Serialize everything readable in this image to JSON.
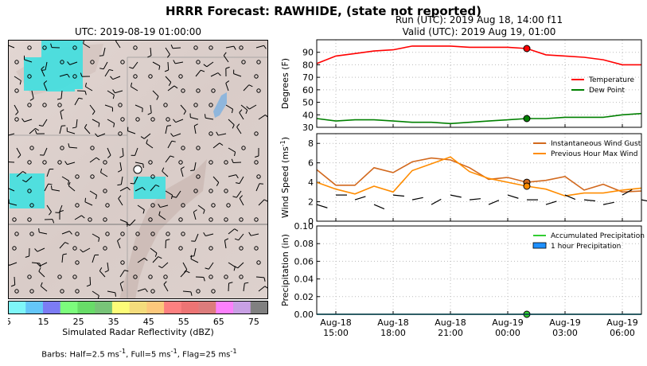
{
  "title": "HRRR Forecast: RAWHIDE, (state not reported)",
  "map": {
    "title": "UTC: 2019-08-19 01:00:00"
  },
  "run": {
    "line1": "Run (UTC): 2019 Aug 18, 14:00 f11",
    "line2": "Valid (UTC): 2019 Aug 19, 01:00"
  },
  "colorbar": {
    "label": "Simulated Radar Reflectivity (dBZ)",
    "ticks": [
      "5",
      "15",
      "25",
      "35",
      "45",
      "55",
      "65",
      "75"
    ],
    "colors": [
      "#7ef6f8",
      "#64c6f8",
      "#7c7cf4",
      "#7cfc7c",
      "#68dc68",
      "#78c478",
      "#fcfc78",
      "#f4dc7c",
      "#fcc87c",
      "#fc8080",
      "#ec7474",
      "#dc7c7c",
      "#fc80fc",
      "#c8a0e4",
      "#808080"
    ]
  },
  "barb_note": {
    "prefix": "Barbs: Half=2.5 ms",
    "mid1": ", Full=5 ms",
    "mid2": ", Flag=25 ms",
    "sup": "-1"
  },
  "colors": {
    "temperature": "#ff0000",
    "dewpoint": "#008000",
    "gust": "#d2691e",
    "maxwind": "#ff8c00",
    "accum": "#32cd32",
    "hourly": "#1e90ff",
    "now_marker_gust": "#d2691e"
  },
  "chart_data": [
    {
      "type": "line",
      "ylabel": "Degrees (F)",
      "ylim": [
        30,
        100
      ],
      "yticks": [
        30,
        40,
        50,
        60,
        70,
        80,
        90
      ],
      "grid": true,
      "legend": "right",
      "series": [
        {
          "name": "Temperature",
          "x": [
            14,
            15,
            16,
            17,
            18,
            19,
            20,
            21,
            22,
            23,
            24,
            25,
            26,
            27,
            28,
            29,
            30,
            31
          ],
          "values": [
            81,
            87,
            89,
            91,
            92,
            95,
            95,
            95,
            94,
            94,
            94,
            93,
            88,
            87,
            86,
            84,
            80,
            80
          ]
        },
        {
          "name": "Dew Point",
          "x": [
            14,
            15,
            16,
            17,
            18,
            19,
            20,
            21,
            22,
            23,
            24,
            25,
            26,
            27,
            28,
            29,
            30,
            31
          ],
          "values": [
            37,
            35,
            36,
            36,
            35,
            34,
            34,
            33,
            34,
            35,
            36,
            37,
            37,
            38,
            38,
            38,
            40,
            41
          ]
        }
      ],
      "valid_hour": 25
    },
    {
      "type": "line",
      "ylabel": "Wind Speed (ms",
      "ylabel_sup": "-1",
      "ylabel_suffix": ")",
      "ylim": [
        0,
        9
      ],
      "yticks": [
        0,
        2,
        4,
        6,
        8
      ],
      "grid": true,
      "legend": "top-right",
      "series": [
        {
          "name": "Instantaneous Wind Gust",
          "x": [
            14,
            15,
            16,
            17,
            18,
            19,
            20,
            21,
            22,
            23,
            24,
            25,
            26,
            27,
            28,
            29,
            30,
            31
          ],
          "values": [
            5.3,
            3.7,
            3.7,
            5.5,
            5.0,
            6.1,
            6.5,
            6.3,
            5.5,
            4.3,
            4.5,
            4.0,
            4.2,
            4.6,
            3.2,
            3.8,
            3.0,
            3.1
          ]
        },
        {
          "name": "Previous Hour Max Wind",
          "x": [
            14,
            15,
            16,
            17,
            18,
            19,
            20,
            21,
            22,
            23,
            24,
            25,
            26,
            27,
            28,
            29,
            30,
            31
          ],
          "values": [
            4.0,
            3.3,
            2.8,
            3.6,
            3.0,
            5.2,
            5.9,
            6.6,
            5.1,
            4.4,
            4.0,
            3.6,
            3.3,
            2.6,
            2.9,
            2.9,
            3.2,
            3.4
          ]
        }
      ],
      "valid_hour": 25
    },
    {
      "type": "line",
      "ylabel": "Precipitation (in)",
      "ylim": [
        0,
        0.1
      ],
      "yticks": [
        "0.00",
        "0.02",
        "0.04",
        "0.06",
        "0.08",
        "0.10"
      ],
      "grid": true,
      "legend": "top-right",
      "series": [
        {
          "name": "Accumulated Precipitation",
          "x": [
            14,
            15,
            16,
            17,
            18,
            19,
            20,
            21,
            22,
            23,
            24,
            25,
            26,
            27,
            28,
            29,
            30,
            31
          ],
          "values": [
            0,
            0,
            0,
            0,
            0,
            0,
            0,
            0,
            0,
            0,
            0,
            0,
            0,
            0,
            0,
            0,
            0,
            0
          ]
        },
        {
          "name": "1 hour Precipitation",
          "x": [
            14,
            15,
            16,
            17,
            18,
            19,
            20,
            21,
            22,
            23,
            24,
            25,
            26,
            27,
            28,
            29,
            30,
            31
          ],
          "values": [
            0,
            0,
            0,
            0,
            0,
            0,
            0,
            0,
            0,
            0,
            0,
            0,
            0,
            0,
            0,
            0,
            0,
            0
          ]
        }
      ],
      "xticks": [
        {
          "hour": 15,
          "label1": "Aug-18",
          "label2": "15:00"
        },
        {
          "hour": 18,
          "label1": "Aug-18",
          "label2": "18:00"
        },
        {
          "hour": 21,
          "label1": "Aug-18",
          "label2": "21:00"
        },
        {
          "hour": 24,
          "label1": "Aug-19",
          "label2": "00:00"
        },
        {
          "hour": 27,
          "label1": "Aug-19",
          "label2": "03:00"
        },
        {
          "hour": 30,
          "label1": "Aug-19",
          "label2": "06:00"
        }
      ],
      "valid_hour": 25
    }
  ]
}
